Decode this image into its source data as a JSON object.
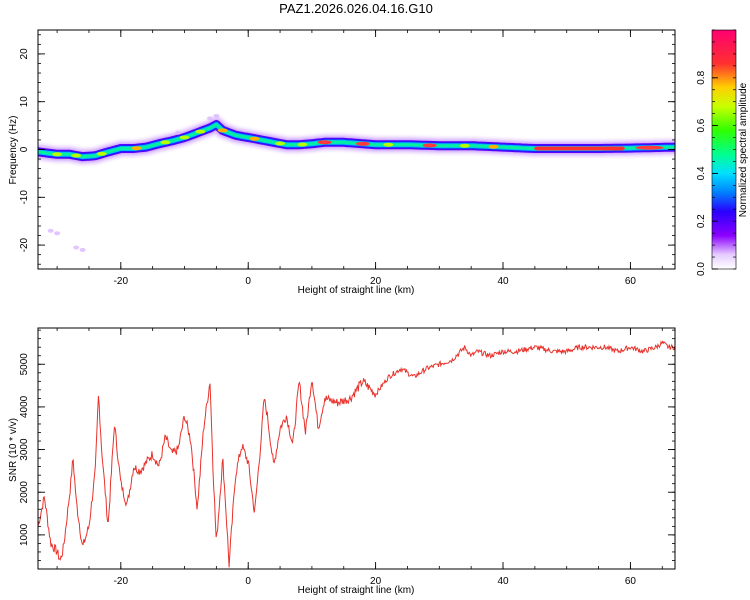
{
  "title": "PAZ1.2026.026.04.16.G10",
  "colors": {
    "trace": "#e8322b",
    "axes": "#000000",
    "background": "#ffffff"
  },
  "chart_data": [
    {
      "type": "heatmap",
      "xlabel": "Height of straight line (km)",
      "ylabel": "Frequency (Hz)",
      "xlim": [
        -33,
        67
      ],
      "ylim": [
        -25,
        25
      ],
      "xticks": [
        -20,
        0,
        20,
        40,
        60
      ],
      "yticks": [
        -20,
        -10,
        0,
        10,
        20
      ],
      "grid": false,
      "ridge": {
        "x": [
          -33,
          -30,
          -28,
          -26,
          -24,
          -22,
          -20,
          -18,
          -16,
          -14,
          -12,
          -10,
          -8,
          -6,
          -5,
          -4,
          -2,
          0,
          2,
          4,
          6,
          8,
          10,
          12,
          15,
          20,
          25,
          30,
          35,
          40,
          45,
          50,
          55,
          60,
          67
        ],
        "freq": [
          -0.5,
          -1.0,
          -1.0,
          -1.5,
          -1.3,
          -0.5,
          0.2,
          0.2,
          0.5,
          1.2,
          1.8,
          2.5,
          3.5,
          4.5,
          5.2,
          4.0,
          3.0,
          2.5,
          2.0,
          1.5,
          1.0,
          1.0,
          1.2,
          1.5,
          1.5,
          1.0,
          1.0,
          0.8,
          0.8,
          0.5,
          0.2,
          0.2,
          0.2,
          0.3,
          0.5
        ]
      },
      "colorbar": {
        "label": "Normalized spectral amplitude",
        "range": [
          0.0,
          1.0
        ],
        "ticks": [
          "0.0",
          "0.2",
          "0.4",
          "0.6",
          "0.8"
        ],
        "tick_values": [
          0.0,
          0.2,
          0.4,
          0.6,
          0.8
        ]
      }
    },
    {
      "type": "line",
      "xlabel": "Height of straight line (km)",
      "ylabel": "SNR (10 * v/v)",
      "xlim": [
        -33,
        67
      ],
      "ylim": [
        200,
        5850
      ],
      "xticks": [
        -20,
        0,
        20,
        40,
        60
      ],
      "yticks": [
        1000,
        2000,
        3000,
        4000,
        5000
      ],
      "grid": false,
      "series": [
        {
          "name": "SNR",
          "x": [
            -33,
            -32,
            -31,
            -30,
            -29.5,
            -29,
            -28,
            -27.5,
            -27,
            -26,
            -25,
            -24,
            -23.5,
            -23,
            -22,
            -21,
            -20,
            -19,
            -18,
            -17,
            -16,
            -15,
            -14,
            -13,
            -12,
            -11,
            -10,
            -9,
            -8,
            -7,
            -6,
            -5.5,
            -5,
            -4,
            -3.5,
            -3,
            -2,
            -1,
            0,
            1,
            2,
            2.5,
            3,
            4,
            5,
            6,
            7,
            8,
            9,
            10,
            11,
            12,
            14,
            16,
            18,
            20,
            22,
            24,
            26,
            28,
            30,
            32,
            34,
            35,
            36,
            38,
            40,
            42,
            45,
            48,
            50,
            52,
            54,
            56,
            58,
            60,
            62,
            64,
            65,
            66,
            67
          ],
          "snr": [
            1200,
            1900,
            800,
            600,
            400,
            700,
            2000,
            2800,
            1800,
            700,
            1200,
            2500,
            4300,
            3000,
            1200,
            3600,
            2200,
            1700,
            2600,
            2500,
            2700,
            2900,
            2600,
            3300,
            2900,
            3000,
            3800,
            3200,
            1600,
            3500,
            4600,
            2500,
            800,
            2800,
            1600,
            300,
            2400,
            3100,
            2700,
            1500,
            3200,
            4200,
            3800,
            2600,
            3500,
            3800,
            3100,
            4600,
            3400,
            4700,
            3500,
            4200,
            4100,
            4200,
            4600,
            4300,
            4700,
            4900,
            4700,
            4900,
            5000,
            5100,
            5400,
            5200,
            5300,
            5200,
            5300,
            5300,
            5400,
            5300,
            5300,
            5400,
            5400,
            5400,
            5300,
            5400,
            5300,
            5400,
            5500,
            5400,
            5400
          ]
        }
      ]
    }
  ]
}
